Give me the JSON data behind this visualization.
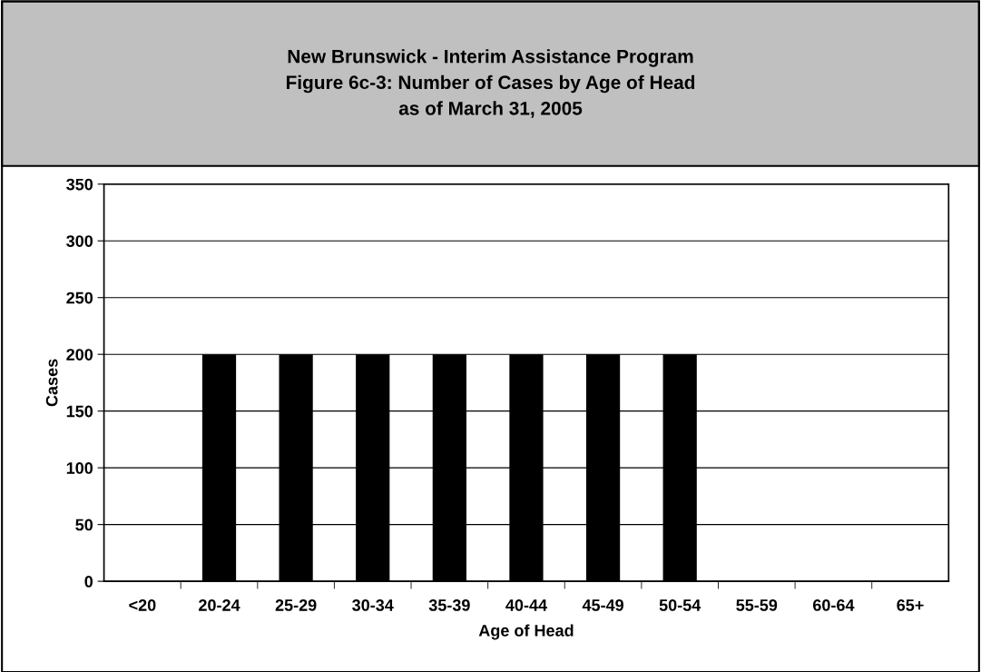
{
  "chart_data": {
    "type": "bar",
    "title": "New Brunswick - Interim Assistance Program\nFigure 6c-3: Number of Cases by Age of Head\nas of March 31, 2005",
    "xlabel": "Age of Head",
    "ylabel": "Cases",
    "categories": [
      "<20",
      "20-24",
      "25-29",
      "30-34",
      "35-39",
      "40-44",
      "45-49",
      "50-54",
      "55-59",
      "60-64",
      "65+"
    ],
    "values": [
      0,
      200,
      200,
      200,
      200,
      200,
      200,
      200,
      0,
      0,
      0
    ],
    "color": "#000000",
    "ylim": [
      0,
      350
    ],
    "yticks": [
      0,
      50,
      100,
      150,
      200,
      250,
      300,
      350
    ],
    "grid": "y",
    "legend": false
  }
}
